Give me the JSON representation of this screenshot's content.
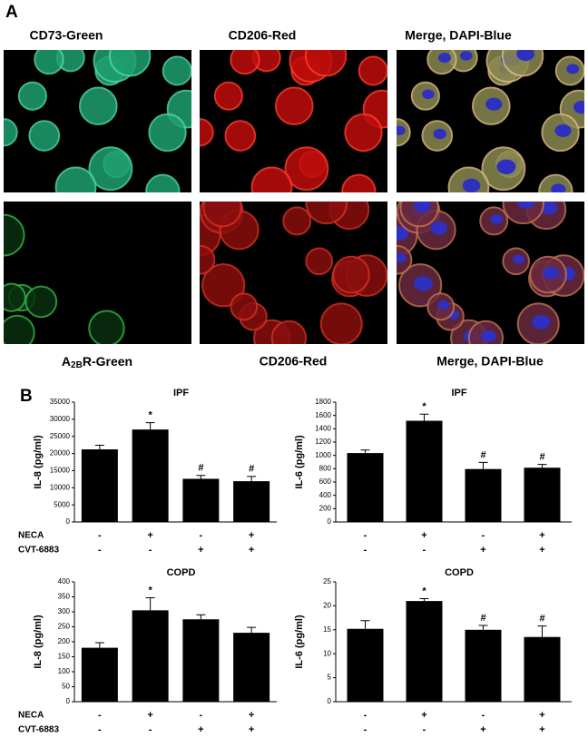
{
  "panel_a": {
    "label": "A",
    "top_captions": [
      "CD73-Green",
      "CD206-Red",
      "Merge, DAPI-Blue"
    ],
    "bottom_captions": [
      {
        "main": "A",
        "sub": "2B",
        "rest": "R-Green"
      },
      {
        "main": "CD206-Red"
      },
      {
        "main": "Merge, DAPI-Blue"
      }
    ]
  },
  "panel_b": {
    "label": "B"
  },
  "chart_data": [
    {
      "type": "bar",
      "title": "IPF",
      "y_label": "IL-8 (pg/ml)",
      "color": "#000000",
      "values": [
        21200,
        27000,
        12600,
        11900
      ],
      "errors": [
        1200,
        2000,
        1000,
        1400
      ],
      "markers": [
        null,
        "*",
        "#",
        "#"
      ],
      "ylim": [
        0,
        35000
      ],
      "yticks": [
        0,
        5000,
        10000,
        15000,
        20000,
        25000,
        30000,
        35000
      ],
      "treatments": [
        {
          "name": "NECA",
          "signs": [
            "-",
            "+",
            "-",
            "+"
          ]
        },
        {
          "name": "CVT-6883",
          "signs": [
            "-",
            "-",
            "+",
            "+"
          ]
        }
      ]
    },
    {
      "type": "bar",
      "title": "IPF",
      "y_label": "IL-6 (pg/ml)",
      "color": "#000000",
      "values": [
        1035,
        1520,
        795,
        815
      ],
      "errors": [
        45,
        100,
        100,
        50
      ],
      "markers": [
        null,
        "*",
        "#",
        "#"
      ],
      "ylim": [
        0,
        1800
      ],
      "yticks": [
        0,
        200,
        400,
        600,
        800,
        1000,
        1200,
        1400,
        1600,
        1800
      ],
      "treatments": [
        {
          "signs": [
            "-",
            "+",
            "-",
            "+"
          ]
        },
        {
          "signs": [
            "-",
            "-",
            "+",
            "+"
          ]
        }
      ]
    },
    {
      "type": "bar",
      "title": "COPD",
      "y_label": "IL-8 (pg/ml)",
      "color": "#000000",
      "values": [
        180,
        305,
        275,
        230
      ],
      "errors": [
        17,
        42,
        15,
        18
      ],
      "markers": [
        null,
        "*",
        null,
        null
      ],
      "ylim": [
        0,
        400
      ],
      "yticks": [
        0,
        50,
        100,
        150,
        200,
        250,
        300,
        350,
        400
      ],
      "treatments": [
        {
          "name": "NECA",
          "signs": [
            "-",
            "+",
            "-",
            "+"
          ]
        },
        {
          "name": "CVT-6883",
          "signs": [
            "-",
            "-",
            "+",
            "+"
          ]
        }
      ]
    },
    {
      "type": "bar",
      "title": "COPD",
      "y_label": "IL-6 (pg/ml)",
      "color": "#000000",
      "values": [
        15.2,
        21,
        15,
        13.5
      ],
      "errors": [
        1.7,
        0.5,
        0.9,
        2.3
      ],
      "markers": [
        null,
        "*",
        "#",
        "#"
      ],
      "ylim": [
        0,
        25
      ],
      "yticks": [
        0,
        5,
        10,
        15,
        20,
        25
      ],
      "treatments": [
        {
          "signs": [
            "-",
            "+",
            "-",
            "+"
          ]
        },
        {
          "signs": [
            "-",
            "-",
            "+",
            "+"
          ]
        }
      ]
    }
  ]
}
